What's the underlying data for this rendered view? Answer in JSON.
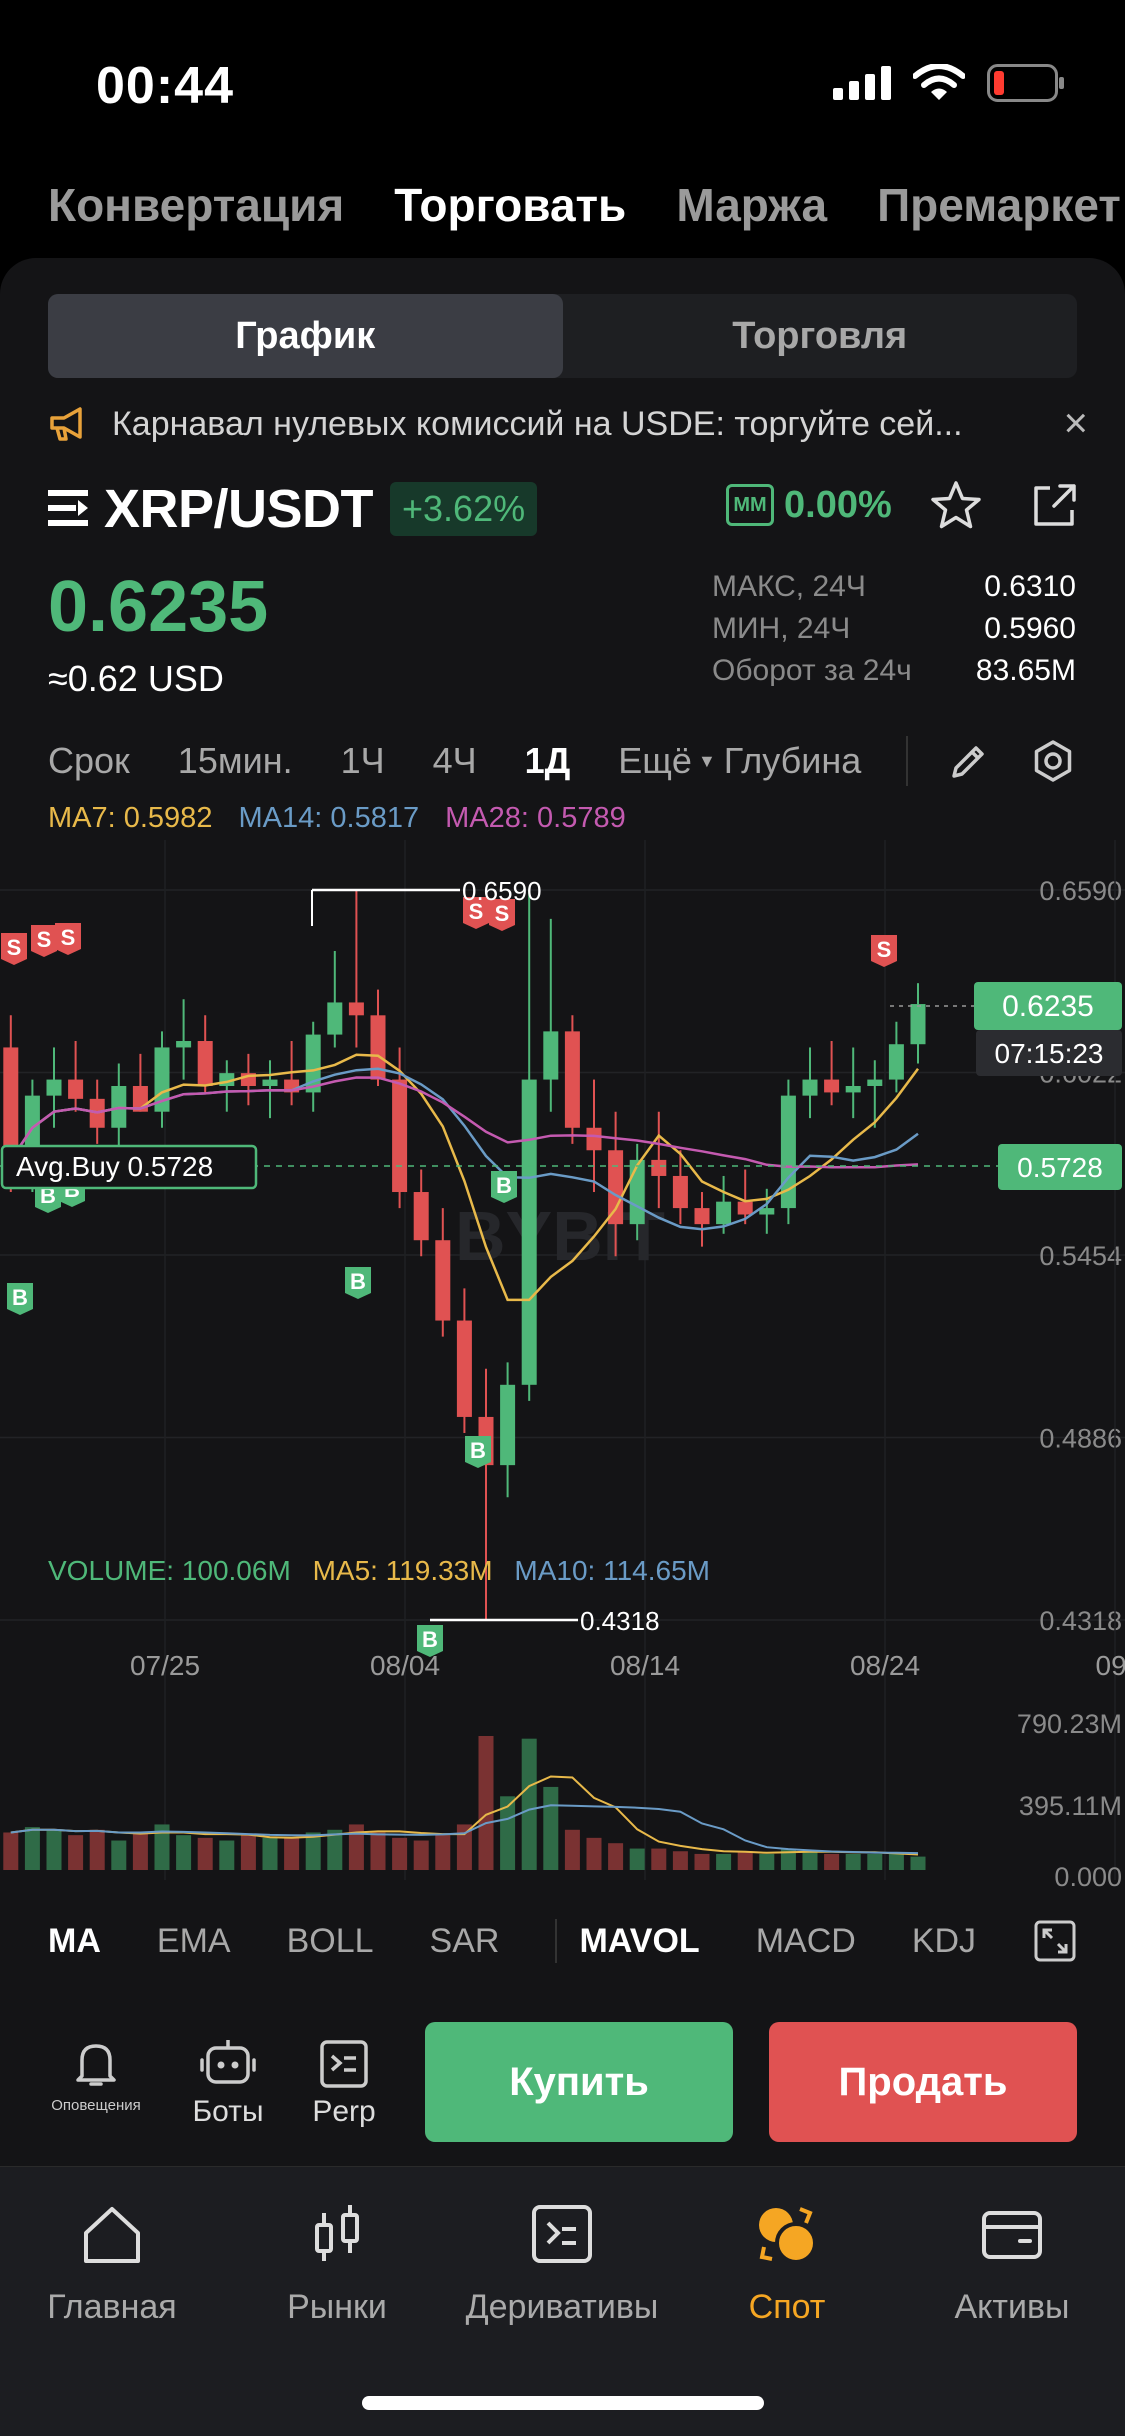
{
  "status": {
    "time": "00:44"
  },
  "top_tabs": [
    "Конвертация",
    "Торговать",
    "Маржа",
    "Премаркет"
  ],
  "top_tab_active": 1,
  "segment": {
    "left": "График",
    "right": "Торговля",
    "active": "left"
  },
  "banner": {
    "text": "Карнавал нулевых комиссий на USDE: торгуйте сей...",
    "close": "×"
  },
  "pair": {
    "name": "XRP/USDT",
    "change": "+3.62%",
    "mm_badge": "MM",
    "mm_value": "0.00%"
  },
  "price": {
    "last": "0.6235",
    "usd": "≈0.62 USD"
  },
  "stats": [
    {
      "label": "МАКС, 24Ч",
      "value": "0.6310"
    },
    {
      "label": "МИН, 24Ч",
      "value": "0.5960"
    },
    {
      "label": "Оборот за 24ч",
      "value": "83.65M"
    }
  ],
  "timeframes": {
    "label": "Срок",
    "items": [
      "15мин.",
      "1Ч",
      "4Ч",
      "1Д"
    ],
    "active": "1Д",
    "more": "Ещё",
    "depth": "Глубина"
  },
  "ma_legend": [
    {
      "text": "MA7: 0.5982",
      "color": "#e8b94a"
    },
    {
      "text": "MA14: 0.5817",
      "color": "#6a9bc6"
    },
    {
      "text": "MA28: 0.5789",
      "color": "#c45ab0"
    }
  ],
  "chart_data": {
    "type": "candlestick",
    "y_ticks": [
      "0.6590",
      "0.6022",
      "0.5454",
      "0.4886",
      "0.4318"
    ],
    "ylim": [
      0.4318,
      0.659
    ],
    "x_ticks": [
      "07/25",
      "08/04",
      "08/14",
      "08/24",
      "09/"
    ],
    "annotations": {
      "high": "0.6590",
      "low": "0.4318",
      "avg_buy": "Avg.Buy 0.5728",
      "avg_buy_value": "0.5728",
      "last_price": "0.6235",
      "countdown": "07:15:23"
    },
    "watermark": "BYBIT",
    "candles_ohlc": [
      [
        0.61,
        0.62,
        0.565,
        0.575
      ],
      [
        0.575,
        0.6,
        0.565,
        0.595
      ],
      [
        0.595,
        0.61,
        0.585,
        0.6
      ],
      [
        0.6,
        0.612,
        0.59,
        0.594
      ],
      [
        0.594,
        0.6,
        0.58,
        0.585
      ],
      [
        0.585,
        0.605,
        0.578,
        0.598
      ],
      [
        0.598,
        0.608,
        0.59,
        0.59
      ],
      [
        0.59,
        0.615,
        0.585,
        0.61
      ],
      [
        0.61,
        0.625,
        0.6,
        0.612
      ],
      [
        0.612,
        0.62,
        0.596,
        0.598
      ],
      [
        0.598,
        0.606,
        0.59,
        0.602
      ],
      [
        0.602,
        0.608,
        0.592,
        0.598
      ],
      [
        0.598,
        0.606,
        0.588,
        0.6
      ],
      [
        0.6,
        0.612,
        0.592,
        0.596
      ],
      [
        0.596,
        0.618,
        0.59,
        0.614
      ],
      [
        0.614,
        0.64,
        0.61,
        0.624
      ],
      [
        0.624,
        0.659,
        0.61,
        0.62
      ],
      [
        0.62,
        0.628,
        0.598,
        0.6
      ],
      [
        0.6,
        0.61,
        0.56,
        0.565
      ],
      [
        0.565,
        0.572,
        0.545,
        0.55
      ],
      [
        0.55,
        0.56,
        0.52,
        0.525
      ],
      [
        0.525,
        0.535,
        0.49,
        0.495
      ],
      [
        0.495,
        0.51,
        0.432,
        0.48
      ],
      [
        0.48,
        0.512,
        0.47,
        0.505
      ],
      [
        0.505,
        0.659,
        0.5,
        0.6
      ],
      [
        0.6,
        0.65,
        0.59,
        0.615
      ],
      [
        0.615,
        0.62,
        0.58,
        0.585
      ],
      [
        0.585,
        0.6,
        0.565,
        0.578
      ],
      [
        0.578,
        0.59,
        0.545,
        0.555
      ],
      [
        0.555,
        0.58,
        0.55,
        0.575
      ],
      [
        0.575,
        0.59,
        0.56,
        0.57
      ],
      [
        0.57,
        0.578,
        0.555,
        0.56
      ],
      [
        0.56,
        0.565,
        0.548,
        0.555
      ],
      [
        0.555,
        0.57,
        0.552,
        0.562
      ],
      [
        0.562,
        0.572,
        0.555,
        0.558
      ],
      [
        0.558,
        0.566,
        0.552,
        0.56
      ],
      [
        0.56,
        0.6,
        0.555,
        0.595
      ],
      [
        0.595,
        0.61,
        0.588,
        0.6
      ],
      [
        0.6,
        0.612,
        0.592,
        0.596
      ],
      [
        0.596,
        0.61,
        0.588,
        0.598
      ],
      [
        0.598,
        0.606,
        0.585,
        0.6
      ],
      [
        0.6,
        0.618,
        0.596,
        0.611
      ],
      [
        0.611,
        0.63,
        0.605,
        0.6235
      ]
    ],
    "volume": {
      "legend": [
        "VOLUME: 100.06M",
        "MA5: 119.33M",
        "MA10: 114.65M"
      ],
      "y_ticks": [
        "790.23M",
        "395.11M",
        "0.000"
      ]
    }
  },
  "indicators": {
    "items": [
      "MA",
      "EMA",
      "BOLL",
      "SAR",
      "MAVOL",
      "MACD",
      "KDJ"
    ],
    "active": [
      "MA",
      "MAVOL"
    ]
  },
  "actions": {
    "alerts": "Оповещения",
    "bots": "Боты",
    "perp": "Perp",
    "buy": "Купить",
    "sell": "Продать"
  },
  "tabbar": [
    {
      "label": "Главная",
      "icon": "home-icon"
    },
    {
      "label": "Рынки",
      "icon": "candles-icon"
    },
    {
      "label": "Деривативы",
      "icon": "terminal-icon"
    },
    {
      "label": "Спот",
      "icon": "spot-icon",
      "active": true
    },
    {
      "label": "Активы",
      "icon": "wallet-icon"
    }
  ],
  "colors": {
    "green": "#4fb879",
    "red": "#e05252",
    "spot_accent": "#f5a623"
  }
}
